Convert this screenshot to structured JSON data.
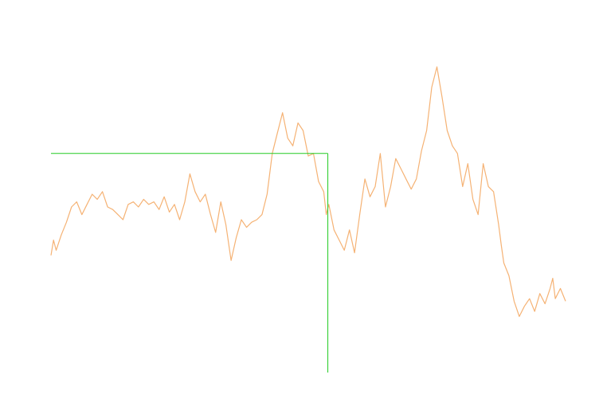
{
  "chart_data": {
    "type": "line",
    "title": "",
    "xlabel": "",
    "ylabel": "",
    "x_range": [
      0,
      1
    ],
    "ylim": [
      0,
      1
    ],
    "grid": false,
    "legend": "none",
    "colors": {
      "series": "#f5b274",
      "crosshair": "#22cc22"
    },
    "series": [
      {
        "x": [
          0,
          0.005,
          0.01,
          0.02,
          0.03,
          0.04,
          0.05,
          0.06,
          0.07,
          0.08,
          0.09,
          0.1,
          0.11,
          0.12,
          0.13,
          0.14,
          0.15,
          0.16,
          0.17,
          0.18,
          0.19,
          0.2,
          0.21,
          0.22,
          0.23,
          0.24,
          0.25,
          0.26,
          0.27,
          0.28,
          0.29,
          0.3,
          0.31,
          0.32,
          0.33,
          0.34,
          0.35,
          0.36,
          0.37,
          0.38,
          0.39,
          0.4,
          0.41,
          0.42,
          0.43,
          0.44,
          0.45,
          0.46,
          0.47,
          0.48,
          0.49,
          0.5,
          0.51,
          0.52,
          0.53,
          0.535,
          0.54,
          0.55,
          0.56,
          0.57,
          0.58,
          0.59,
          0.6,
          0.61,
          0.62,
          0.63,
          0.64,
          0.65,
          0.66,
          0.67,
          0.68,
          0.69,
          0.7,
          0.71,
          0.72,
          0.73,
          0.74,
          0.75,
          0.76,
          0.77,
          0.78,
          0.79,
          0.8,
          0.81,
          0.82,
          0.83,
          0.84,
          0.85,
          0.86,
          0.87,
          0.875,
          0.88,
          0.89,
          0.9,
          0.91,
          0.92,
          0.93,
          0.94,
          0.95,
          0.96,
          0.97,
          0.975,
          0.98,
          0.99,
          1.0
        ],
        "y": [
          0.26,
          0.32,
          0.28,
          0.34,
          0.39,
          0.45,
          0.47,
          0.42,
          0.46,
          0.5,
          0.48,
          0.51,
          0.45,
          0.44,
          0.42,
          0.4,
          0.46,
          0.47,
          0.45,
          0.48,
          0.46,
          0.47,
          0.44,
          0.49,
          0.43,
          0.46,
          0.4,
          0.47,
          0.58,
          0.51,
          0.47,
          0.5,
          0.42,
          0.35,
          0.47,
          0.38,
          0.24,
          0.33,
          0.4,
          0.37,
          0.39,
          0.4,
          0.42,
          0.5,
          0.66,
          0.74,
          0.82,
          0.72,
          0.69,
          0.78,
          0.75,
          0.65,
          0.66,
          0.55,
          0.51,
          0.42,
          0.46,
          0.36,
          0.32,
          0.28,
          0.36,
          0.27,
          0.42,
          0.56,
          0.49,
          0.53,
          0.66,
          0.45,
          0.53,
          0.64,
          0.6,
          0.56,
          0.52,
          0.56,
          0.67,
          0.75,
          0.92,
          1.0,
          0.88,
          0.75,
          0.69,
          0.66,
          0.53,
          0.62,
          0.48,
          0.42,
          0.62,
          0.53,
          0.51,
          0.38,
          0.3,
          0.23,
          0.18,
          0.08,
          0.02,
          0.06,
          0.09,
          0.04,
          0.11,
          0.07,
          0.13,
          0.17,
          0.09,
          0.13,
          0.08
        ]
      }
    ],
    "crosshair": {
      "x": 0.538,
      "y": 0.66
    }
  }
}
